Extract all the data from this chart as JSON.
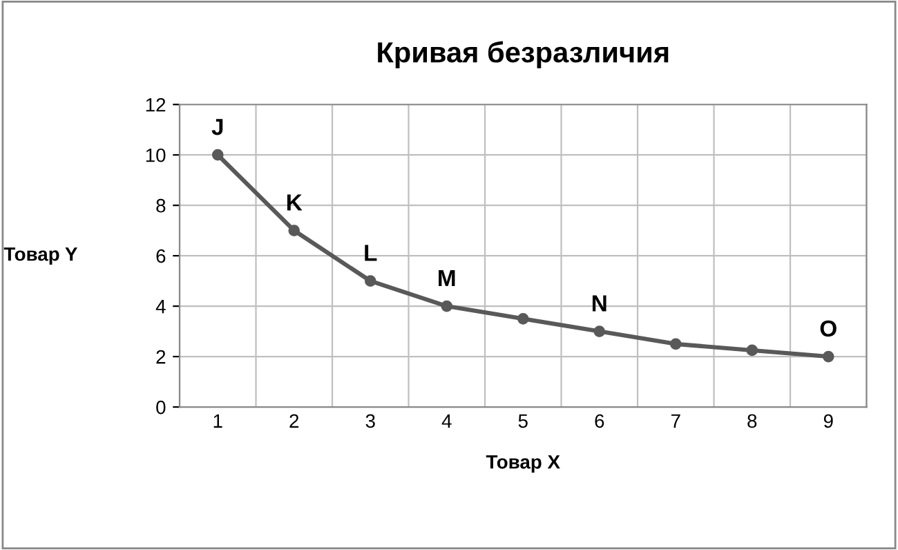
{
  "chart_data": {
    "type": "line",
    "title": "Кривая безразличия",
    "xlabel": "Товар X",
    "ylabel": "Товар Y",
    "categories": [
      "1",
      "2",
      "3",
      "4",
      "5",
      "6",
      "7",
      "8",
      "9"
    ],
    "series": [
      {
        "color": "#595959",
        "values": [
          10,
          7,
          5,
          4,
          3.5,
          3,
          2.5,
          2.25,
          2
        ]
      }
    ],
    "ylim": [
      0,
      12
    ],
    "yticks": [
      0,
      2,
      4,
      6,
      8,
      10,
      12
    ],
    "grid": true,
    "legend": false,
    "marker": "circle",
    "line_style": "solid",
    "annotations": [
      {
        "text": "J",
        "x": "1",
        "y": 10
      },
      {
        "text": "K",
        "x": "2",
        "y": 7
      },
      {
        "text": "L",
        "x": "3",
        "y": 5
      },
      {
        "text": "M",
        "x": "4",
        "y": 4
      },
      {
        "text": "N",
        "x": "6",
        "y": 3
      },
      {
        "text": "O",
        "x": "9",
        "y": 2
      }
    ]
  }
}
